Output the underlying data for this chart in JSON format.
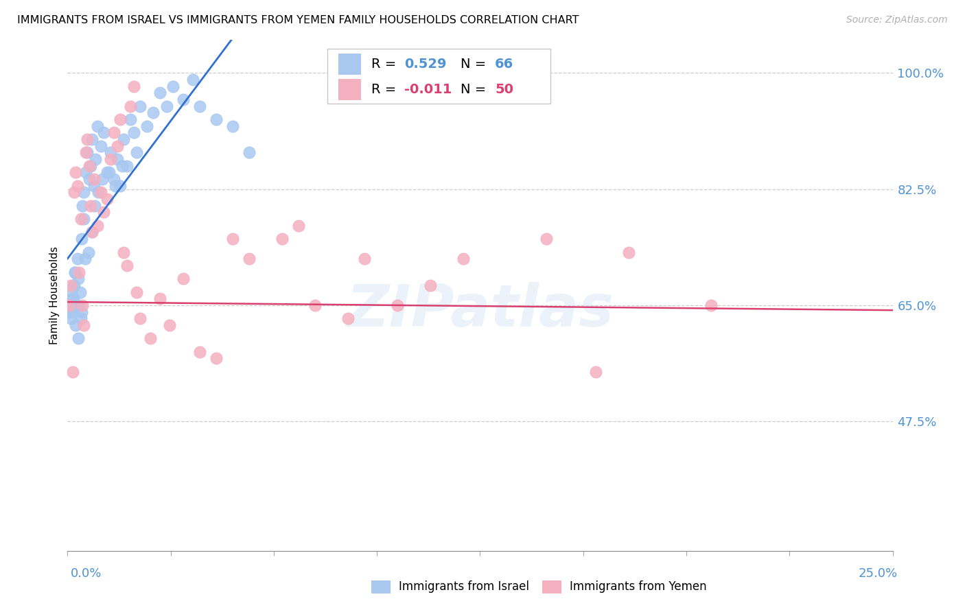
{
  "title": "IMMIGRANTS FROM ISRAEL VS IMMIGRANTS FROM YEMEN FAMILY HOUSEHOLDS CORRELATION CHART",
  "source": "Source: ZipAtlas.com",
  "ylabel": "Family Households",
  "yticks": [
    47.5,
    65.0,
    82.5,
    100.0
  ],
  "ytick_labels": [
    "47.5%",
    "65.0%",
    "82.5%",
    "100.0%"
  ],
  "xmin": 0.0,
  "xmax": 25.0,
  "ymin": 28.0,
  "ymax": 105.0,
  "israel_R": 0.529,
  "israel_N": 66,
  "yemen_R": -0.011,
  "yemen_N": 50,
  "israel_color": "#a8c8f0",
  "yemen_color": "#f5b0c0",
  "israel_line_color": "#3070d0",
  "yemen_line_color": "#d84070",
  "watermark": "ZIPatlas",
  "israel_scatter_x": [
    0.05,
    0.1,
    0.12,
    0.15,
    0.18,
    0.2,
    0.22,
    0.25,
    0.28,
    0.3,
    0.32,
    0.35,
    0.38,
    0.4,
    0.42,
    0.45,
    0.48,
    0.5,
    0.55,
    0.6,
    0.65,
    0.7,
    0.75,
    0.8,
    0.85,
    0.9,
    1.0,
    1.1,
    1.2,
    1.3,
    1.4,
    1.5,
    1.6,
    1.7,
    1.8,
    1.9,
    2.0,
    2.1,
    2.2,
    2.4,
    2.6,
    2.8,
    3.0,
    3.2,
    3.5,
    3.8,
    4.0,
    4.5,
    5.0,
    5.5,
    0.08,
    0.13,
    0.17,
    0.23,
    0.27,
    0.33,
    0.43,
    0.53,
    0.63,
    0.73,
    0.83,
    0.93,
    1.05,
    1.25,
    1.45,
    1.65
  ],
  "israel_scatter_y": [
    65,
    63,
    67,
    64,
    66,
    68,
    70,
    62,
    65,
    72,
    60,
    65,
    67,
    63,
    75,
    80,
    78,
    82,
    85,
    88,
    84,
    86,
    90,
    83,
    87,
    92,
    89,
    91,
    85,
    88,
    84,
    87,
    83,
    90,
    86,
    93,
    91,
    88,
    95,
    92,
    94,
    97,
    95,
    98,
    96,
    99,
    95,
    93,
    92,
    88,
    64,
    66,
    68,
    70,
    65,
    69,
    64,
    72,
    73,
    76,
    80,
    82,
    84,
    85,
    83,
    86
  ],
  "yemen_scatter_x": [
    0.05,
    0.1,
    0.15,
    0.2,
    0.25,
    0.3,
    0.35,
    0.4,
    0.45,
    0.5,
    0.55,
    0.6,
    0.65,
    0.7,
    0.75,
    0.8,
    0.9,
    1.0,
    1.1,
    1.2,
    1.3,
    1.4,
    1.5,
    1.6,
    1.7,
    1.8,
    1.9,
    2.0,
    2.1,
    2.2,
    2.5,
    2.8,
    3.1,
    3.5,
    4.0,
    4.5,
    5.0,
    5.5,
    6.5,
    7.5,
    8.5,
    10.0,
    12.0,
    14.5,
    17.0,
    19.5,
    7.0,
    9.0,
    11.0,
    16.0
  ],
  "yemen_scatter_y": [
    65,
    68,
    55,
    82,
    85,
    83,
    70,
    78,
    65,
    62,
    88,
    90,
    86,
    80,
    76,
    84,
    77,
    82,
    79,
    81,
    87,
    91,
    89,
    93,
    73,
    71,
    95,
    98,
    67,
    63,
    60,
    66,
    62,
    69,
    58,
    57,
    75,
    72,
    75,
    65,
    63,
    65,
    72,
    75,
    73,
    65,
    77,
    72,
    68,
    55
  ]
}
